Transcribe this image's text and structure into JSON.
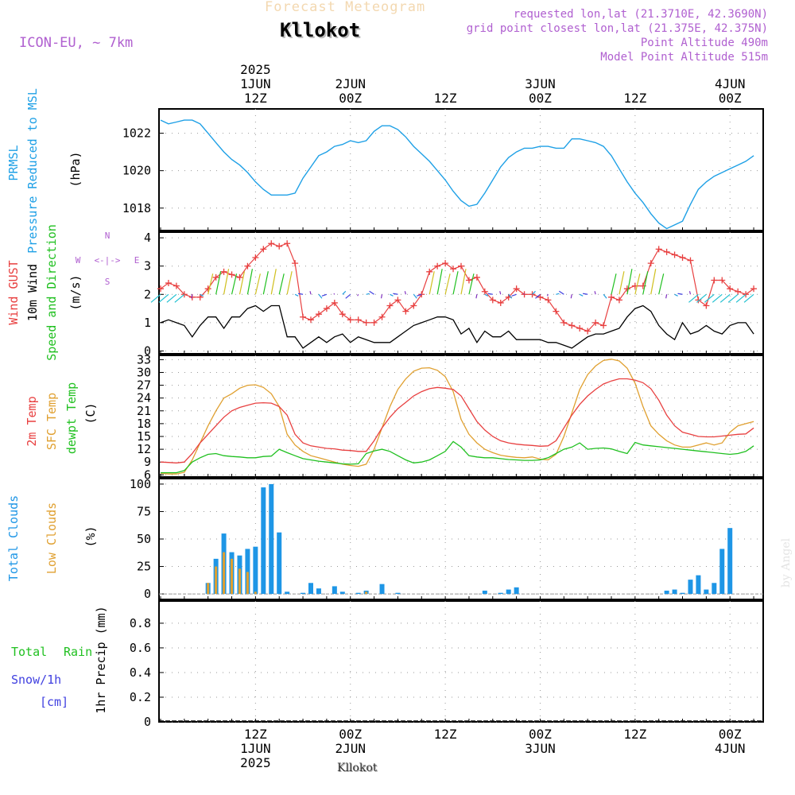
{
  "header": {
    "product": "Forecast Meteogram",
    "location": "Kllokot",
    "model": "ICON-EU, ~ 7km",
    "requested": "requested lon,lat (21.3710E, 42.3690N)",
    "gridpoint": "grid point closest lon,lat (21.375E, 42.375N)",
    "point_alt": "Point Altitude 490m",
    "model_alt": "Model Point Altitude 515m",
    "credit": "by Angel",
    "footer_location": "Kllokot"
  },
  "time_axis": {
    "top_labels": [
      {
        "t": 12,
        "lines": [
          "2025",
          "1JUN",
          "12Z"
        ]
      },
      {
        "t": 24,
        "lines": [
          "2JUN",
          "00Z"
        ]
      },
      {
        "t": 36,
        "lines": [
          "12Z"
        ]
      },
      {
        "t": 48,
        "lines": [
          "3JUN",
          "00Z"
        ]
      },
      {
        "t": 60,
        "lines": [
          "12Z"
        ]
      },
      {
        "t": 72,
        "lines": [
          "4JUN",
          "00Z"
        ]
      }
    ],
    "bottom_labels": [
      {
        "t": 12,
        "lines": [
          "12Z",
          "1JUN",
          "2025"
        ]
      },
      {
        "t": 24,
        "lines": [
          "00Z",
          "2JUN"
        ]
      },
      {
        "t": 36,
        "lines": [
          "12Z"
        ]
      },
      {
        "t": 48,
        "lines": [
          "00Z",
          "3JUN"
        ]
      },
      {
        "t": 60,
        "lines": [
          "12Z"
        ]
      },
      {
        "t": 72,
        "lines": [
          "00Z",
          "4JUN"
        ]
      }
    ]
  },
  "colors": {
    "pressure": "#1ea0e6",
    "gust": "#e84040",
    "wind": "#000000",
    "temp2m": "#e84040",
    "sfc": "#e0a030",
    "dewpt": "#20c020",
    "total_clouds": "#1e96e6",
    "low_clouds": "#e0a030",
    "rain": "#20c020",
    "snow": "#4040e0",
    "magenta": "#b060d0"
  },
  "chart_data": [
    {
      "type": "line",
      "panel": "pressure",
      "labels": {
        "left": "PRMSL",
        "left2": "Pressure Reduced to MSL",
        "unit": "(hPa)"
      },
      "ylim": [
        1016.8,
        1023.3
      ],
      "yticks": [
        "1018",
        "1020",
        "1022"
      ],
      "x": [
        0,
        1,
        2,
        3,
        4,
        5,
        6,
        7,
        8,
        9,
        10,
        11,
        12,
        13,
        14,
        15,
        16,
        17,
        18,
        19,
        20,
        21,
        22,
        23,
        24,
        25,
        26,
        27,
        28,
        29,
        30,
        31,
        32,
        33,
        34,
        35,
        36,
        37,
        38,
        39,
        40,
        41,
        42,
        43,
        44,
        45,
        46,
        47,
        48,
        49,
        50,
        51,
        52,
        53,
        54,
        55,
        56,
        57,
        58,
        59,
        60,
        61,
        62,
        63,
        64,
        65,
        66,
        67,
        68,
        69,
        70,
        71,
        72,
        73,
        74,
        75
      ],
      "series": [
        {
          "values": [
            1022.7,
            1022.5,
            1022.6,
            1022.7,
            1022.7,
            1022.5,
            1022.0,
            1021.5,
            1021.0,
            1020.6,
            1020.3,
            1019.9,
            1019.4,
            1019.0,
            1018.7,
            1018.7,
            1018.7,
            1018.8,
            1019.6,
            1020.2,
            1020.8,
            1021.0,
            1021.3,
            1021.4,
            1021.6,
            1021.5,
            1021.6,
            1022.1,
            1022.4,
            1022.4,
            1022.2,
            1021.8,
            1021.3,
            1020.9,
            1020.5,
            1020.0,
            1019.5,
            1018.9,
            1018.4,
            1018.1,
            1018.2,
            1018.8,
            1019.5,
            1020.2,
            1020.7,
            1021.0,
            1021.2,
            1021.2,
            1021.3,
            1021.3,
            1021.2,
            1021.2,
            1021.7,
            1021.7,
            1021.6,
            1021.5,
            1021.3,
            1020.8,
            1020.1,
            1019.4,
            1018.8,
            1018.3,
            1017.7,
            1017.2,
            1016.9,
            1017.1,
            1017.3,
            1018.2,
            1019.0,
            1019.4,
            1019.7,
            1019.9,
            1020.1,
            1020.3,
            1020.5,
            1020.8
          ]
        }
      ]
    },
    {
      "type": "line",
      "panel": "wind",
      "labels": {
        "left": "Wind GUST",
        "left2": "10m Wind",
        "left3": "Speed and Direction",
        "unit": "(m/s)"
      },
      "compass": {
        "n": "N",
        "s": "S",
        "w": "W",
        "e": "E",
        "arrow": "<-|->"
      },
      "ylim": [
        -0.1,
        4.2
      ],
      "yticks": [
        "0",
        "1",
        "2",
        "3",
        "4"
      ],
      "x": [
        0,
        1,
        2,
        3,
        4,
        5,
        6,
        7,
        8,
        9,
        10,
        11,
        12,
        13,
        14,
        15,
        16,
        17,
        18,
        19,
        20,
        21,
        22,
        23,
        24,
        25,
        26,
        27,
        28,
        29,
        30,
        31,
        32,
        33,
        34,
        35,
        36,
        37,
        38,
        39,
        40,
        41,
        42,
        43,
        44,
        45,
        46,
        47,
        48,
        49,
        50,
        51,
        52,
        53,
        54,
        55,
        56,
        57,
        58,
        59,
        60,
        61,
        62,
        63,
        64,
        65,
        66,
        67,
        68,
        69,
        70,
        71,
        72,
        73,
        74,
        75
      ],
      "series": [
        {
          "name": "Wind GUST",
          "values": [
            2.2,
            2.4,
            2.3,
            2.0,
            1.9,
            1.9,
            2.2,
            2.6,
            2.8,
            2.7,
            2.6,
            3.0,
            3.3,
            3.6,
            3.8,
            3.7,
            3.8,
            3.1,
            1.2,
            1.1,
            1.3,
            1.5,
            1.7,
            1.3,
            1.1,
            1.1,
            1.0,
            1.0,
            1.2,
            1.6,
            1.8,
            1.4,
            1.6,
            2.0,
            2.8,
            3.0,
            3.1,
            2.9,
            3.0,
            2.5,
            2.6,
            2.1,
            1.8,
            1.7,
            1.9,
            2.2,
            2.0,
            2.0,
            1.9,
            1.8,
            1.4,
            1.0,
            0.9,
            0.8,
            0.7,
            1.0,
            0.9,
            1.9,
            1.8,
            2.2,
            2.3,
            2.3,
            3.1,
            3.6,
            3.5,
            3.4,
            3.3,
            3.2,
            1.8,
            1.6,
            2.5,
            2.5,
            2.2,
            2.1,
            2.0,
            2.2
          ]
        },
        {
          "name": "10m Wind",
          "values": [
            1.0,
            1.1,
            1.0,
            0.9,
            0.5,
            0.9,
            1.2,
            1.2,
            0.8,
            1.2,
            1.2,
            1.5,
            1.6,
            1.4,
            1.6,
            1.6,
            0.5,
            0.5,
            0.1,
            0.3,
            0.5,
            0.3,
            0.5,
            0.6,
            0.3,
            0.5,
            0.4,
            0.3,
            0.3,
            0.3,
            0.5,
            0.7,
            0.9,
            1.0,
            1.1,
            1.2,
            1.2,
            1.1,
            0.6,
            0.8,
            0.3,
            0.7,
            0.5,
            0.5,
            0.7,
            0.4,
            0.4,
            0.4,
            0.4,
            0.3,
            0.3,
            0.2,
            0.1,
            0.3,
            0.5,
            0.6,
            0.6,
            0.7,
            0.8,
            1.2,
            1.5,
            1.6,
            1.4,
            0.9,
            0.6,
            0.4,
            1.0,
            0.6,
            0.7,
            0.9,
            0.7,
            0.6,
            0.9,
            1.0,
            1.0,
            0.6
          ]
        }
      ]
    },
    {
      "type": "line",
      "panel": "temperature",
      "labels": {
        "left": "2m Temp",
        "left2": "SFC Temp",
        "left3": "dewpt Temp",
        "unit": "(C)"
      },
      "ylim": [
        5.5,
        34
      ],
      "yticks": [
        "6",
        "9",
        "12",
        "15",
        "18",
        "21",
        "24",
        "27",
        "30",
        "33"
      ],
      "x": [
        0,
        1,
        2,
        3,
        4,
        5,
        6,
        7,
        8,
        9,
        10,
        11,
        12,
        13,
        14,
        15,
        16,
        17,
        18,
        19,
        20,
        21,
        22,
        23,
        24,
        25,
        26,
        27,
        28,
        29,
        30,
        31,
        32,
        33,
        34,
        35,
        36,
        37,
        38,
        39,
        40,
        41,
        42,
        43,
        44,
        45,
        46,
        47,
        48,
        49,
        50,
        51,
        52,
        53,
        54,
        55,
        56,
        57,
        58,
        59,
        60,
        61,
        62,
        63,
        64,
        65,
        66,
        67,
        68,
        69,
        70,
        71,
        72,
        73,
        74,
        75
      ],
      "series": [
        {
          "name": "2m Temp",
          "values": [
            9.0,
            8.9,
            8.8,
            9.0,
            11.0,
            13.5,
            15.5,
            17.5,
            19.5,
            21.0,
            21.8,
            22.3,
            22.8,
            22.9,
            22.8,
            22.0,
            20.0,
            15.5,
            13.5,
            12.8,
            12.5,
            12.2,
            12.1,
            11.8,
            11.7,
            11.5,
            11.5,
            14.0,
            17.0,
            19.5,
            21.5,
            23.0,
            24.5,
            25.5,
            26.2,
            26.5,
            26.3,
            26.0,
            24.5,
            21.5,
            18.5,
            16.5,
            15.0,
            14.0,
            13.5,
            13.2,
            13.0,
            12.9,
            12.7,
            12.8,
            14.0,
            17.0,
            20.0,
            22.5,
            24.5,
            26.0,
            27.3,
            28.0,
            28.5,
            28.5,
            28.2,
            27.6,
            26.2,
            23.5,
            20.0,
            17.5,
            16.0,
            15.5,
            15.0,
            14.9,
            14.9,
            15.1,
            15.3,
            15.5,
            15.6,
            17.0
          ]
        },
        {
          "name": "SFC Temp",
          "values": [
            6.4,
            6.2,
            6.2,
            6.6,
            9.5,
            13.5,
            17.5,
            21.0,
            24.0,
            25.0,
            26.3,
            27.0,
            27.1,
            26.5,
            25.0,
            22.0,
            15.5,
            13.0,
            11.5,
            10.5,
            10.0,
            9.5,
            9.0,
            8.5,
            8.2,
            8.0,
            8.5,
            12.0,
            17.0,
            22.0,
            26.0,
            28.5,
            30.3,
            31.0,
            31.1,
            30.5,
            29.0,
            25.5,
            19.0,
            15.5,
            13.5,
            12.0,
            11.2,
            10.6,
            10.3,
            10.1,
            10.0,
            10.2,
            9.7,
            9.5,
            10.8,
            15.0,
            20.5,
            26.0,
            29.5,
            31.5,
            32.8,
            33.1,
            32.7,
            31.0,
            27.5,
            22.0,
            17.5,
            15.5,
            14.0,
            13.0,
            12.5,
            12.5,
            13.0,
            13.5,
            13.0,
            13.5,
            16.0,
            17.5,
            18.0,
            18.5
          ]
        },
        {
          "name": "dewpt Temp",
          "values": [
            6.5,
            6.5,
            6.5,
            7.0,
            9.0,
            10.0,
            10.8,
            11.0,
            10.5,
            10.3,
            10.2,
            10.0,
            10.0,
            10.3,
            10.4,
            12.0,
            11.2,
            10.5,
            9.8,
            9.5,
            9.2,
            9.0,
            8.8,
            8.6,
            8.5,
            8.6,
            11.0,
            11.6,
            12.0,
            11.5,
            10.5,
            9.5,
            8.8,
            9.0,
            9.5,
            10.5,
            11.5,
            13.8,
            12.5,
            10.5,
            10.2,
            10.0,
            10.0,
            9.8,
            9.6,
            9.5,
            9.4,
            9.4,
            9.5,
            10.0,
            11.0,
            12.0,
            12.5,
            13.5,
            12.0,
            12.2,
            12.3,
            12.1,
            11.5,
            11.0,
            13.6,
            13.0,
            12.8,
            12.6,
            12.4,
            12.2,
            12.0,
            11.8,
            11.6,
            11.4,
            11.2,
            11.0,
            10.8,
            11.0,
            11.5,
            12.8
          ]
        }
      ]
    },
    {
      "type": "bar",
      "panel": "clouds",
      "labels": {
        "left": "Total Clouds",
        "left2": "Low Clouds",
        "unit": "(%)"
      },
      "ylim": [
        -5,
        105
      ],
      "yticks": [
        "0",
        "25",
        "50",
        "75",
        "100"
      ],
      "x": [
        6,
        7,
        8,
        9,
        10,
        11,
        12,
        13,
        14,
        15,
        16,
        18,
        19,
        20,
        22,
        23,
        25,
        26,
        28,
        30,
        41,
        43,
        44,
        45,
        64,
        65,
        66,
        67,
        68,
        69,
        70,
        71,
        72
      ],
      "series": [
        {
          "name": "Total Clouds",
          "values": [
            10,
            32,
            55,
            38,
            35,
            41,
            43,
            97,
            100,
            56,
            2,
            1,
            10,
            5,
            7,
            2,
            1,
            3,
            9,
            1,
            3,
            1,
            4,
            6,
            3,
            4,
            1,
            13,
            17,
            4,
            10,
            41,
            60
          ]
        },
        {
          "name": "Low Clouds",
          "values": [
            10,
            25,
            38,
            32,
            23,
            20,
            2,
            0,
            0,
            0,
            0,
            0,
            0,
            0,
            0,
            0,
            0,
            2,
            0,
            0,
            0,
            0,
            0,
            0,
            0,
            0,
            0,
            0,
            0,
            0,
            0,
            0,
            0
          ]
        }
      ]
    },
    {
      "type": "line",
      "panel": "precip",
      "labels": {
        "left": "Total",
        "left2": "Rain",
        "left3": "Snow/1h",
        "left4": "[cm]",
        "unit": "1hr Precip (mm)"
      },
      "ylim": [
        0,
        0.98
      ],
      "yticks": [
        "0",
        "0.2",
        "0.4",
        "0.6",
        "0.8"
      ],
      "series": [
        {
          "name": "Total",
          "values": []
        }
      ]
    }
  ]
}
